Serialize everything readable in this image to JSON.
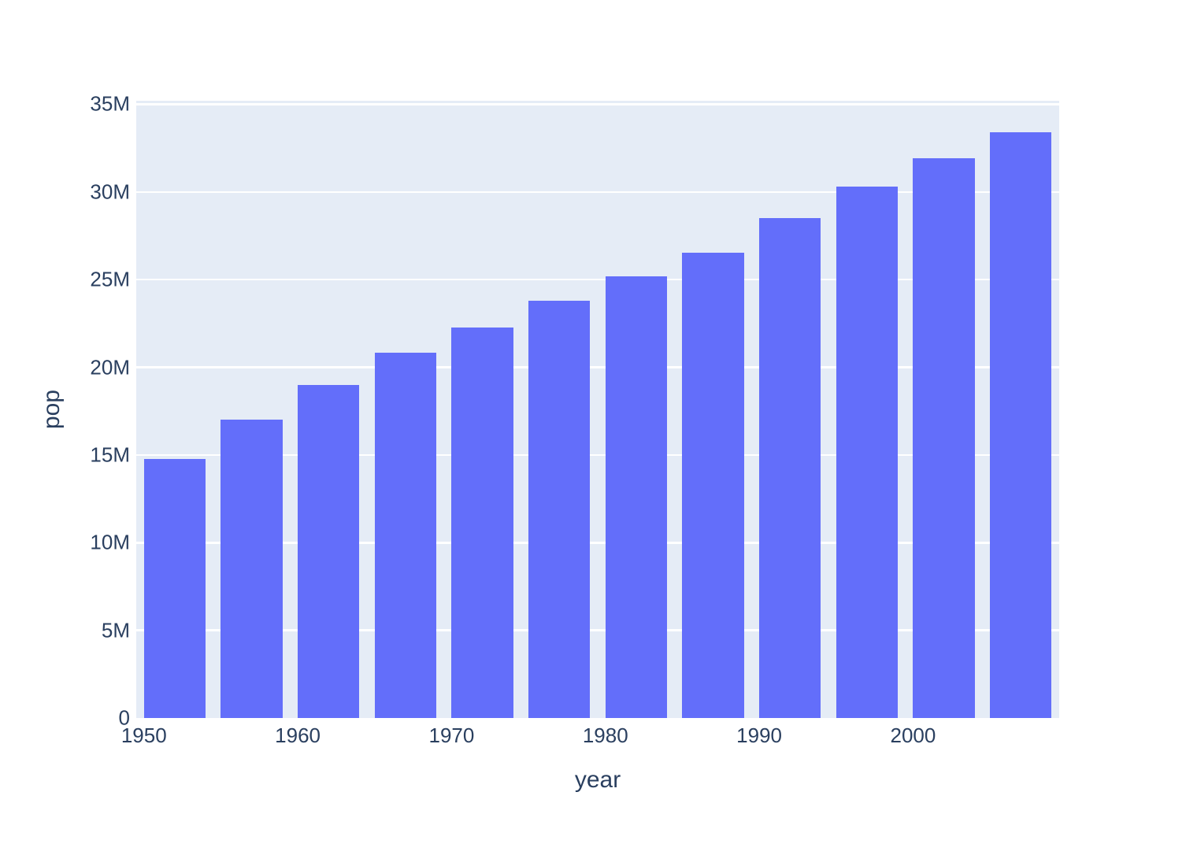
{
  "chart_data": {
    "type": "bar",
    "title": "",
    "xlabel": "year",
    "ylabel": "pop",
    "x": [
      1952,
      1957,
      1962,
      1967,
      1972,
      1977,
      1982,
      1987,
      1992,
      1997,
      2002,
      2007
    ],
    "values": [
      14785584,
      17010154,
      18985849,
      20819767,
      22284500,
      23796400,
      25201900,
      26549700,
      28523502,
      30305843,
      31902268,
      33390141
    ],
    "series_name": "pop",
    "bar_width_years": 4,
    "x_range": [
      1949.5,
      2009.5
    ],
    "y_range": [
      0,
      35200000
    ],
    "x_ticks": [
      {
        "value": 1950,
        "label": "1950"
      },
      {
        "value": 1960,
        "label": "1960"
      },
      {
        "value": 1970,
        "label": "1970"
      },
      {
        "value": 1980,
        "label": "1980"
      },
      {
        "value": 1990,
        "label": "1990"
      },
      {
        "value": 2000,
        "label": "2000"
      }
    ],
    "y_ticks": [
      {
        "value": 0,
        "label": "0"
      },
      {
        "value": 5000000,
        "label": "5M"
      },
      {
        "value": 10000000,
        "label": "10M"
      },
      {
        "value": 15000000,
        "label": "15M"
      },
      {
        "value": 20000000,
        "label": "20M"
      },
      {
        "value": 25000000,
        "label": "25M"
      },
      {
        "value": 30000000,
        "label": "30M"
      },
      {
        "value": 35000000,
        "label": "35M"
      }
    ],
    "grid": true,
    "legend": "none",
    "colors": {
      "bar": "#636EFA",
      "plot_background": "#E5ECF6",
      "gridline": "#FFFFFF",
      "text": "#2A3F5F",
      "page_background": "#FFFFFF"
    }
  }
}
